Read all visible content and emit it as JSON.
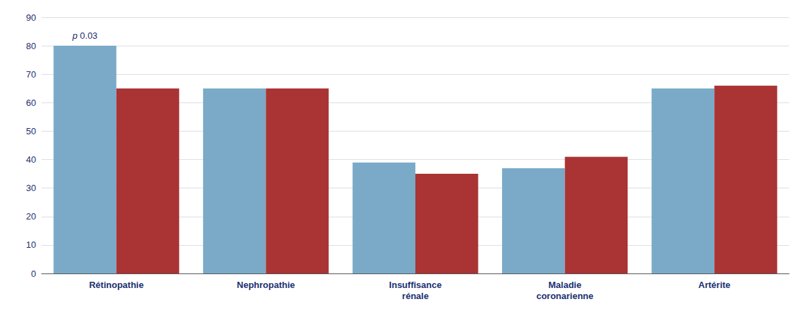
{
  "chart_data": {
    "type": "bar",
    "categories": [
      "Rétinopathie",
      "Nephropathie",
      "Insuffisance\nrénale",
      "Maladie\ncoronarienne",
      "Artérite"
    ],
    "series": [
      {
        "color": "#7aaac8",
        "values": [
          80,
          65,
          39,
          37,
          65
        ]
      },
      {
        "color": "#aa3333",
        "values": [
          65,
          65,
          35,
          41,
          66
        ]
      }
    ],
    "annotation": "p 0.03",
    "ylim": [
      0,
      90
    ],
    "yticks": [
      0,
      10,
      20,
      30,
      40,
      50,
      60,
      70,
      80,
      90
    ],
    "grid": true
  }
}
